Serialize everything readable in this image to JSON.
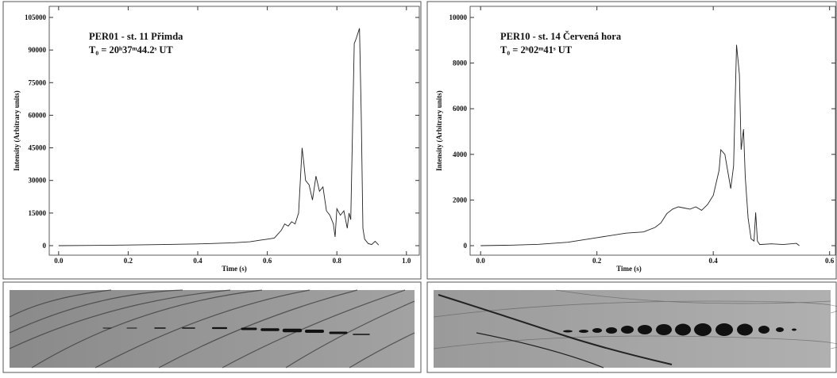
{
  "chart_data": [
    {
      "type": "line",
      "title": "PER01 - st. 11 Přimda",
      "subtitle": "T₀ = 20ʰ37ᵐ44.2ˢ UT",
      "xlabel": "Time (s)",
      "ylabel": "Intensity (Arbitrary units)",
      "x": [
        0,
        0.1,
        0.2,
        0.3,
        0.4,
        0.5,
        0.55,
        0.58,
        0.6,
        0.62,
        0.64,
        0.65,
        0.66,
        0.67,
        0.68,
        0.69,
        0.7,
        0.705,
        0.71,
        0.72,
        0.73,
        0.74,
        0.75,
        0.76,
        0.77,
        0.78,
        0.79,
        0.795,
        0.8,
        0.81,
        0.82,
        0.83,
        0.835,
        0.84,
        0.85,
        0.855,
        0.865,
        0.87,
        0.875,
        0.88,
        0.89,
        0.9,
        0.91,
        0.92
      ],
      "series": [
        {
          "color": "#222222",
          "values": [
            0,
            100,
            300,
            500,
            800,
            1300,
            1800,
            2500,
            3000,
            3500,
            7000,
            10000,
            9000,
            11000,
            10000,
            15000,
            45000,
            38000,
            30000,
            28000,
            21000,
            32000,
            25000,
            27000,
            16000,
            14000,
            10000,
            4000,
            17000,
            14000,
            16000,
            8000,
            15000,
            12000,
            93000,
            95000,
            100000,
            60000,
            8000,
            3000,
            1000,
            500,
            2000,
            300
          ]
        }
      ],
      "xlim": [
        -0.027,
        1.037
      ],
      "ylim": [
        -4375,
        110100
      ],
      "xticks": [
        {
          "value": 0,
          "label": "0.0"
        },
        0.2,
        0.4,
        0.6,
        0.8,
        {
          "value": 1,
          "label": "1.0"
        }
      ],
      "yticks": [
        0,
        15000,
        30000,
        45000,
        60000,
        75000,
        90000,
        105000
      ]
    },
    {
      "type": "line",
      "title": "PER10 - st. 14 Červená hora",
      "subtitle": "T₀ = 2ʰ02ᵐ41ˢ UT",
      "xlabel": "Time (s)",
      "ylabel": "Intensity (Arbitrary units)",
      "x": [
        0,
        0.05,
        0.1,
        0.15,
        0.2,
        0.25,
        0.28,
        0.3,
        0.31,
        0.32,
        0.33,
        0.34,
        0.35,
        0.36,
        0.37,
        0.38,
        0.39,
        0.4,
        0.41,
        0.413,
        0.42,
        0.43,
        0.435,
        0.44,
        0.445,
        0.448,
        0.452,
        0.455,
        0.46,
        0.465,
        0.47,
        0.473,
        0.476,
        0.48,
        0.5,
        0.52,
        0.543,
        0.548
      ],
      "series": [
        {
          "color": "#222222",
          "values": [
            0,
            20,
            60,
            150,
            350,
            550,
            600,
            800,
            1000,
            1400,
            1600,
            1700,
            1650,
            1600,
            1700,
            1550,
            1800,
            2200,
            3300,
            4200,
            4000,
            2500,
            3500,
            8800,
            7500,
            4200,
            5100,
            3000,
            1200,
            300,
            200,
            1450,
            200,
            50,
            80,
            50,
            100,
            0
          ]
        }
      ],
      "xlim": [
        -0.018,
        0.61
      ],
      "ylim": [
        -417,
        10486
      ],
      "xticks": [
        {
          "value": 0,
          "label": "0.0"
        },
        0.2,
        0.4,
        0.6
      ],
      "yticks": [
        0,
        2000,
        4000,
        6000,
        8000,
        10000
      ]
    }
  ]
}
